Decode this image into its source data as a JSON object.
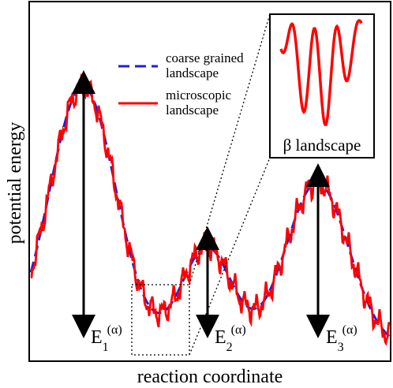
{
  "axes": {
    "xlabel": "reaction coordinate",
    "ylabel": "potential energy"
  },
  "legend": {
    "coarse_line1": "coarse grained",
    "coarse_line2": "landscape",
    "micro_line1": "microscopic",
    "micro_line2": "landscape"
  },
  "inset": {
    "label": "β landscape"
  },
  "energy_labels": [
    {
      "base": "E",
      "sub": "1",
      "sup": "(α)"
    },
    {
      "base": "E",
      "sub": "2",
      "sup": "(α)"
    },
    {
      "base": "E",
      "sub": "3",
      "sup": "(α)"
    }
  ],
  "colors": {
    "coarse": "#1f1fe0",
    "micro": "#ff0000",
    "frame": "#000000"
  }
}
